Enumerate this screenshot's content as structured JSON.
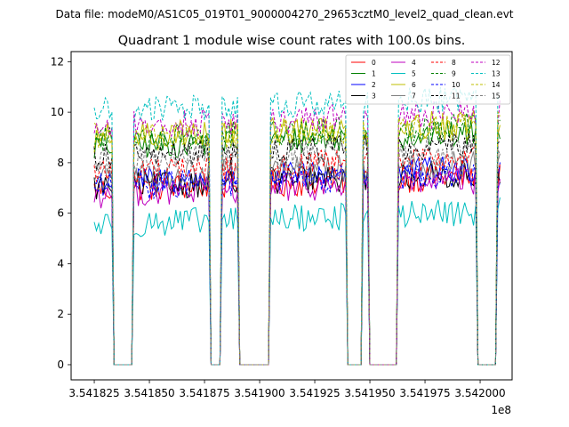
{
  "figure": {
    "suptitle": "Data file: modeM0/AS1C05_019T01_9000004270_29653cztM0_level2_quad_clean.evt"
  },
  "chart_data": {
    "type": "line",
    "title": "Quadrant 1 module wise count rates with 100.0s bins.",
    "xlabel": "",
    "ylabel": "",
    "x_offset_label": "1e8",
    "xlim": [
      3.5418145,
      3.5420145
    ],
    "ylim": [
      -0.6,
      12.4
    ],
    "xticks": [
      3.541825,
      3.54185,
      3.541875,
      3.5419,
      3.541925,
      3.54195,
      3.541975,
      3.542
    ],
    "xtick_labels": [
      "3.541825",
      "3.541850",
      "3.541875",
      "3.541900",
      "3.541925",
      "3.541950",
      "3.541975",
      "3.542000"
    ],
    "yticks": [
      0,
      2,
      4,
      6,
      8,
      10,
      12
    ],
    "ytick_labels": [
      "0",
      "2",
      "4",
      "6",
      "8",
      "10",
      "12"
    ],
    "grid": false,
    "legend_position": "top-right",
    "legend_columns": 4,
    "gaps": [
      [
        3.541833,
        3.541843
      ],
      [
        3.5418775,
        3.5418825
      ],
      [
        3.54189,
        3.541905
      ],
      [
        3.5419395,
        3.5419465
      ],
      [
        3.541949,
        3.541963
      ],
      [
        3.5419985,
        3.5420075
      ]
    ],
    "segments": [
      [
        3.541825,
        3.5418315
      ],
      [
        3.5418445,
        3.541876
      ],
      [
        3.541884,
        3.5418885
      ],
      [
        3.5419065,
        3.541938
      ],
      [
        3.541948,
        3.541948
      ],
      [
        3.5419645,
        3.541997
      ],
      [
        3.542009,
        3.542009
      ]
    ],
    "series": [
      {
        "name": "0",
        "color": "#ff0000",
        "dash": "solid",
        "level": 6.9
      },
      {
        "name": "1",
        "color": "#008000",
        "dash": "solid",
        "level": 8.6
      },
      {
        "name": "2",
        "color": "#0000ff",
        "dash": "solid",
        "level": 7.2
      },
      {
        "name": "3",
        "color": "#000000",
        "dash": "solid",
        "level": 7.0
      },
      {
        "name": "4",
        "color": "#bf00bf",
        "dash": "solid",
        "level": 6.7
      },
      {
        "name": "5",
        "color": "#00bfbf",
        "dash": "solid",
        "level": 5.5
      },
      {
        "name": "6",
        "color": "#bfbf00",
        "dash": "solid",
        "level": 9.0
      },
      {
        "name": "7",
        "color": "#808080",
        "dash": "solid",
        "level": 7.4
      },
      {
        "name": "8",
        "color": "#ff0000",
        "dash": "dashed",
        "level": 7.6
      },
      {
        "name": "9",
        "color": "#008000",
        "dash": "dashed",
        "level": 8.9
      },
      {
        "name": "10",
        "color": "#0000ff",
        "dash": "dashed",
        "level": 7.0
      },
      {
        "name": "11",
        "color": "#000000",
        "dash": "dashed",
        "level": 8.2
      },
      {
        "name": "12",
        "color": "#bf00bf",
        "dash": "dashed",
        "level": 9.4
      },
      {
        "name": "13",
        "color": "#00bfbf",
        "dash": "dashed",
        "level": 10.0
      },
      {
        "name": "14",
        "color": "#bfbf00",
        "dash": "dashed",
        "level": 8.9
      },
      {
        "name": "15",
        "color": "#808080",
        "dash": "dashed",
        "level": 8.0
      }
    ]
  }
}
